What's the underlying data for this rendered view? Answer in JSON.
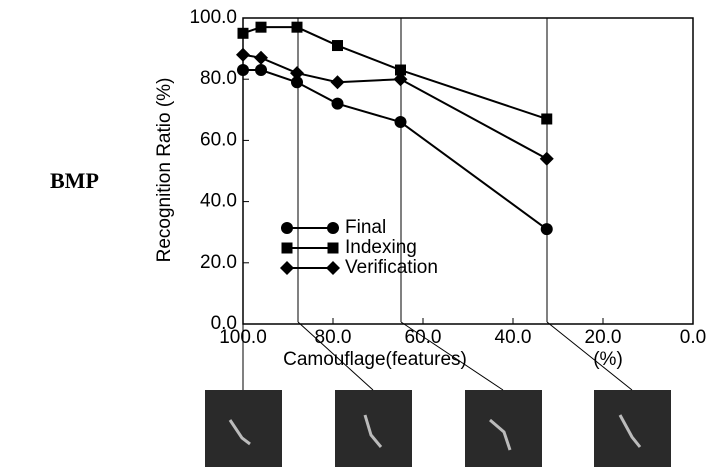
{
  "chart_data": {
    "type": "line",
    "annotation": "BMP",
    "x_label": "Camouflage(features)",
    "x_unit": "(%)",
    "y_label": "Recognition Ratio (%)",
    "x": [
      100,
      96,
      88,
      79,
      65,
      32.5
    ],
    "series": [
      {
        "name": "Final",
        "color": "#000000",
        "marker": "circle",
        "values": [
          83,
          83,
          79,
          72,
          66,
          31
        ]
      },
      {
        "name": "Indexing",
        "color": "#000000",
        "marker": "square",
        "values": [
          95,
          97,
          97,
          91,
          83,
          67
        ]
      },
      {
        "name": "Verification",
        "color": "#000000",
        "marker": "diamond",
        "values": [
          88,
          87,
          82,
          79,
          80,
          54
        ]
      }
    ],
    "xlim": [
      100,
      0
    ],
    "ylim": [
      0,
      100
    ],
    "xticks": [
      {
        "value": 100,
        "label": "100.0"
      },
      {
        "value": 80,
        "label": "80.0"
      },
      {
        "value": 60,
        "label": "60.0"
      },
      {
        "value": 40,
        "label": "40.0"
      },
      {
        "value": 20,
        "label": "20.0"
      },
      {
        "value": 0,
        "label": "0.0"
      }
    ],
    "yticks": [
      {
        "value": 0,
        "label": "0.0"
      },
      {
        "value": 20,
        "label": "20.0"
      },
      {
        "value": 40,
        "label": "40.0"
      },
      {
        "value": 60,
        "label": "60.0"
      },
      {
        "value": 80,
        "label": "80.0"
      },
      {
        "value": 100,
        "label": "100.0"
      }
    ]
  }
}
